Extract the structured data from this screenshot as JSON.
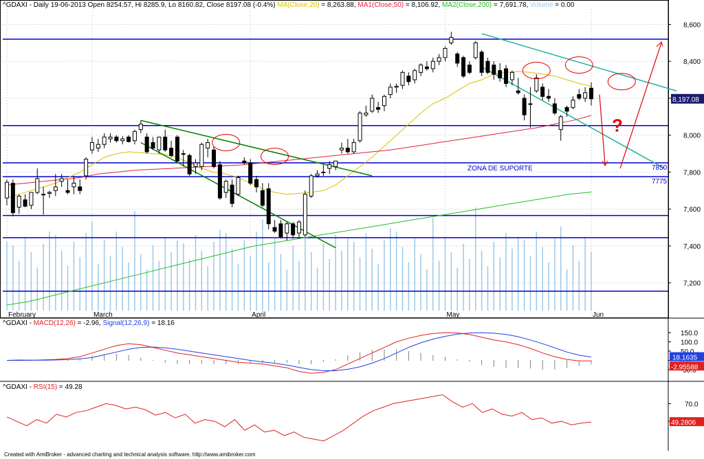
{
  "header": {
    "symbol": "^GDAXI",
    "info": "^GDAXI - Daily 19-06-2013 Open 8254.57, Hi 8285.9, Lo 8160.82, Close 8197.08 (-0.4%)",
    "ma_label": "MA(Close,20)",
    "ma_value": " = 8,263.88,",
    "ma1_label": "MA1(Close,50)",
    "ma1_value": " = 8,106.92,",
    "ma2_label": "MA2(Close,200)",
    "ma2_value": " = 7,691.78,",
    "vol_label": "Volume",
    "vol_value": " = 0.00"
  },
  "macd_header": {
    "prefix": "^GDAXI - ",
    "macd_label": "MACD(12,26)",
    "macd_value": " = -2.96, ",
    "signal_label": "Signal(12,26,9)",
    "signal_value": " = 18.16"
  },
  "rsi_header": {
    "prefix": "^GDAXI - ",
    "rsi_label": "RSI(15)",
    "rsi_value": " = 49.28"
  },
  "footer": "Created with AmiBroker - advanced charting and technical analysis software. http://www.amibroker.com",
  "colors": {
    "ma20": "#d8c000",
    "ma50": "#e0203c",
    "ma200": "#20c020",
    "volume": "#9cc8e8",
    "hline": "#0000cc",
    "trend": "#008000",
    "trend2": "#20b0a0",
    "circle": "#e00000",
    "macd": "#e02020",
    "signal": "#2040e0",
    "rsi": "#e02020",
    "last_price_bg": "#1a1a6e"
  },
  "annotations": {
    "support_zone": "ZONA DE SUPORTE",
    "level_7850": "7850",
    "level_7775": "7775",
    "question": "?"
  },
  "chart_data": [
    {
      "type": "candlestick",
      "title": "^GDAXI - Daily",
      "x_labels": [
        "February",
        "March",
        "April",
        "May",
        "Jun"
      ],
      "ylim": [
        7050,
        8680
      ],
      "y_ticks": [
        "8,600",
        "8,400",
        "8,200",
        "8,000",
        "7,800",
        "7,600",
        "7,400",
        "7,200"
      ],
      "last_price_label": "8,197.08",
      "horizontal_levels": [
        8520,
        8052,
        7850,
        7775,
        7565,
        7445,
        7155
      ],
      "candles": [
        {
          "o": 7660,
          "h": 7760,
          "l": 7620,
          "c": 7745
        },
        {
          "o": 7740,
          "h": 7760,
          "l": 7560,
          "c": 7580
        },
        {
          "o": 7610,
          "h": 7680,
          "l": 7575,
          "c": 7670
        },
        {
          "o": 7650,
          "h": 7680,
          "l": 7610,
          "c": 7615
        },
        {
          "o": 7620,
          "h": 7690,
          "l": 7600,
          "c": 7690
        },
        {
          "o": 7690,
          "h": 7820,
          "l": 7680,
          "c": 7765
        },
        {
          "o": 7680,
          "h": 7720,
          "l": 7570,
          "c": 7680
        },
        {
          "o": 7685,
          "h": 7700,
          "l": 7660,
          "c": 7690
        },
        {
          "o": 7700,
          "h": 7790,
          "l": 7670,
          "c": 7720
        },
        {
          "o": 7750,
          "h": 7790,
          "l": 7720,
          "c": 7765
        },
        {
          "o": 7700,
          "h": 7760,
          "l": 7680,
          "c": 7690
        },
        {
          "o": 7720,
          "h": 7780,
          "l": 7680,
          "c": 7740
        },
        {
          "o": 7720,
          "h": 7760,
          "l": 7680,
          "c": 7700
        },
        {
          "o": 7780,
          "h": 7880,
          "l": 7760,
          "c": 7870
        },
        {
          "o": 7920,
          "h": 7990,
          "l": 7900,
          "c": 7960
        },
        {
          "o": 7930,
          "h": 7980,
          "l": 7910,
          "c": 7950
        },
        {
          "o": 7950,
          "h": 8010,
          "l": 7930,
          "c": 7990
        },
        {
          "o": 7980,
          "h": 8010,
          "l": 7960,
          "c": 7990
        },
        {
          "o": 7990,
          "h": 8000,
          "l": 7960,
          "c": 7970
        },
        {
          "o": 7970,
          "h": 7995,
          "l": 7950,
          "c": 7980
        },
        {
          "o": 7990,
          "h": 8000,
          "l": 7960,
          "c": 7965
        },
        {
          "o": 7970,
          "h": 8030,
          "l": 7950,
          "c": 8020
        },
        {
          "o": 8030,
          "h": 8080,
          "l": 8010,
          "c": 8060
        },
        {
          "o": 7990,
          "h": 8010,
          "l": 7900,
          "c": 7910
        },
        {
          "o": 7960,
          "h": 7990,
          "l": 7920,
          "c": 7930
        },
        {
          "o": 7920,
          "h": 7990,
          "l": 7900,
          "c": 7990
        },
        {
          "o": 7990,
          "h": 8030,
          "l": 7910,
          "c": 7920
        },
        {
          "o": 7930,
          "h": 7970,
          "l": 7880,
          "c": 7890
        },
        {
          "o": 7990,
          "h": 8000,
          "l": 7850,
          "c": 7860
        },
        {
          "o": 7900,
          "h": 7920,
          "l": 7830,
          "c": 7900
        },
        {
          "o": 7890,
          "h": 7900,
          "l": 7780,
          "c": 7790
        },
        {
          "o": 7830,
          "h": 7870,
          "l": 7790,
          "c": 7850
        },
        {
          "o": 7830,
          "h": 7960,
          "l": 7810,
          "c": 7950
        },
        {
          "o": 7930,
          "h": 7980,
          "l": 7880,
          "c": 7960
        },
        {
          "o": 7920,
          "h": 7940,
          "l": 7820,
          "c": 7830
        },
        {
          "o": 7840,
          "h": 7860,
          "l": 7650,
          "c": 7660
        },
        {
          "o": 7690,
          "h": 7760,
          "l": 7660,
          "c": 7750
        },
        {
          "o": 7730,
          "h": 7760,
          "l": 7610,
          "c": 7630
        },
        {
          "o": 7680,
          "h": 7780,
          "l": 7670,
          "c": 7770
        },
        {
          "o": 7860,
          "h": 7880,
          "l": 7840,
          "c": 7850
        },
        {
          "o": 7850,
          "h": 7870,
          "l": 7730,
          "c": 7740
        },
        {
          "o": 7760,
          "h": 7780,
          "l": 7690,
          "c": 7720
        },
        {
          "o": 7700,
          "h": 7740,
          "l": 7610,
          "c": 7620
        },
        {
          "o": 7710,
          "h": 7740,
          "l": 7490,
          "c": 7520
        },
        {
          "o": 7500,
          "h": 7540,
          "l": 7470,
          "c": 7480
        },
        {
          "o": 7520,
          "h": 7540,
          "l": 7440,
          "c": 7450
        },
        {
          "o": 7470,
          "h": 7530,
          "l": 7430,
          "c": 7520
        },
        {
          "o": 7520,
          "h": 7530,
          "l": 7440,
          "c": 7460
        },
        {
          "o": 7470,
          "h": 7540,
          "l": 7440,
          "c": 7530
        },
        {
          "o": 7460,
          "h": 7700,
          "l": 7450,
          "c": 7680
        },
        {
          "o": 7670,
          "h": 7790,
          "l": 7660,
          "c": 7780
        },
        {
          "o": 7780,
          "h": 7810,
          "l": 7770,
          "c": 7790
        },
        {
          "o": 7800,
          "h": 7840,
          "l": 7780,
          "c": 7800
        },
        {
          "o": 7820,
          "h": 7860,
          "l": 7790,
          "c": 7840
        },
        {
          "o": 7830,
          "h": 7860,
          "l": 7810,
          "c": 7860
        },
        {
          "o": 7920,
          "h": 7960,
          "l": 7900,
          "c": 7930
        },
        {
          "o": 7930,
          "h": 7980,
          "l": 7900,
          "c": 7910
        },
        {
          "o": 7910,
          "h": 7980,
          "l": 7900,
          "c": 7960
        },
        {
          "o": 7970,
          "h": 8130,
          "l": 7960,
          "c": 8120
        },
        {
          "o": 8110,
          "h": 8160,
          "l": 8100,
          "c": 8120
        },
        {
          "o": 8130,
          "h": 8220,
          "l": 8120,
          "c": 8200
        },
        {
          "o": 8150,
          "h": 8180,
          "l": 8120,
          "c": 8140
        },
        {
          "o": 8160,
          "h": 8220,
          "l": 8130,
          "c": 8210
        },
        {
          "o": 8220,
          "h": 8280,
          "l": 8200,
          "c": 8260
        },
        {
          "o": 8260,
          "h": 8280,
          "l": 8230,
          "c": 8265
        },
        {
          "o": 8270,
          "h": 8350,
          "l": 8250,
          "c": 8340
        },
        {
          "o": 8320,
          "h": 8340,
          "l": 8270,
          "c": 8290
        },
        {
          "o": 8300,
          "h": 8360,
          "l": 8280,
          "c": 8350
        },
        {
          "o": 8340,
          "h": 8390,
          "l": 8320,
          "c": 8380
        },
        {
          "o": 8370,
          "h": 8400,
          "l": 8350,
          "c": 8360
        },
        {
          "o": 8360,
          "h": 8420,
          "l": 8340,
          "c": 8400
        },
        {
          "o": 8400,
          "h": 8440,
          "l": 8380,
          "c": 8420
        },
        {
          "o": 8420,
          "h": 8480,
          "l": 8400,
          "c": 8470
        },
        {
          "o": 8500,
          "h": 8560,
          "l": 8490,
          "c": 8530
        },
        {
          "o": 8440,
          "h": 8450,
          "l": 8370,
          "c": 8390
        },
        {
          "o": 8420,
          "h": 8430,
          "l": 8310,
          "c": 8320
        },
        {
          "o": 8380,
          "h": 8400,
          "l": 8330,
          "c": 8340
        },
        {
          "o": 8420,
          "h": 8510,
          "l": 8410,
          "c": 8500
        },
        {
          "o": 8450,
          "h": 8460,
          "l": 8320,
          "c": 8340
        },
        {
          "o": 8400,
          "h": 8420,
          "l": 8330,
          "c": 8340
        },
        {
          "o": 8380,
          "h": 8400,
          "l": 8300,
          "c": 8330
        },
        {
          "o": 8350,
          "h": 8390,
          "l": 8290,
          "c": 8310
        },
        {
          "o": 8360,
          "h": 8380,
          "l": 8260,
          "c": 8280
        },
        {
          "o": 8300,
          "h": 8350,
          "l": 8270,
          "c": 8340
        },
        {
          "o": 8240,
          "h": 8310,
          "l": 8220,
          "c": 8230
        },
        {
          "o": 8200,
          "h": 8220,
          "l": 8080,
          "c": 8110
        },
        {
          "o": 8170,
          "h": 8260,
          "l": 8040,
          "c": 8170
        },
        {
          "o": 8240,
          "h": 8330,
          "l": 8230,
          "c": 8310
        },
        {
          "o": 8260,
          "h": 8280,
          "l": 8190,
          "c": 8210
        },
        {
          "o": 8210,
          "h": 8250,
          "l": 8180,
          "c": 8200
        },
        {
          "o": 8170,
          "h": 8200,
          "l": 8110,
          "c": 8120
        },
        {
          "o": 8030,
          "h": 8110,
          "l": 7970,
          "c": 8100
        },
        {
          "o": 8150,
          "h": 8160,
          "l": 8100,
          "c": 8130
        },
        {
          "o": 8150,
          "h": 8210,
          "l": 8140,
          "c": 8190
        },
        {
          "o": 8220,
          "h": 8250,
          "l": 8190,
          "c": 8200
        },
        {
          "o": 8200,
          "h": 8260,
          "l": 8180,
          "c": 8230
        },
        {
          "o": 8254.57,
          "h": 8285.9,
          "l": 8160.82,
          "c": 8197.08
        }
      ],
      "ma20": [
        [
          7660,
          7680,
          7700,
          7720,
          7740,
          7770,
          7800,
          7840,
          7880,
          7900,
          7910,
          7905,
          7900,
          7895,
          7880,
          7850,
          7820,
          7800,
          7790,
          7770,
          7740,
          7710,
          7690,
          7680,
          7685,
          7690,
          7700,
          7730,
          7780,
          7830,
          7880,
          7940,
          8000,
          8060,
          8120,
          8170,
          8200,
          8240,
          8280,
          8300,
          8330,
          8340,
          8345,
          8340,
          8330,
          8320,
          8300,
          8280,
          8263.88
        ]
      ],
      "ma50": [
        7730,
        7740,
        7750,
        7760,
        7770,
        7790,
        7800,
        7810,
        7815,
        7820,
        7825,
        7830,
        7835,
        7840,
        7850,
        7860,
        7870,
        7880,
        7890,
        7900,
        7910,
        7920,
        7935,
        7950,
        7965,
        7980,
        7995,
        8010,
        8025,
        8040,
        8060,
        8080,
        8106.92
      ],
      "ma200": [
        7080,
        7100,
        7130,
        7160,
        7190,
        7220,
        7250,
        7280,
        7310,
        7340,
        7370,
        7400,
        7420,
        7440,
        7460,
        7480,
        7500,
        7520,
        7540,
        7560,
        7580,
        7600,
        7620,
        7640,
        7660,
        7680,
        7691.78
      ],
      "series": [
        {
          "name": "MA(Close,20)"
        },
        {
          "name": "MA1(Close,50)"
        },
        {
          "name": "MA2(Close,200)"
        },
        {
          "name": "Volume"
        }
      ]
    },
    {
      "type": "line",
      "title": "MACD(12,26)",
      "ylim": [
        -80,
        180
      ],
      "y_ticks": [
        "150.0",
        "100.0",
        "50.0",
        "0.0",
        "-50.0"
      ],
      "macd_label": "-2.95588",
      "signal_label": "18.1635",
      "series": [
        {
          "name": "MACD(12,26)",
          "values": [
            0,
            2,
            1,
            3,
            5,
            10,
            20,
            40,
            60,
            80,
            90,
            85,
            70,
            55,
            40,
            30,
            20,
            10,
            0,
            -10,
            -15,
            -20,
            -30,
            -40,
            -60,
            -70,
            -65,
            -50,
            -20,
            10,
            40,
            70,
            100,
            120,
            135,
            145,
            150,
            148,
            140,
            125,
            110,
            100,
            85,
            65,
            40,
            20,
            5,
            -3,
            -2.96
          ]
        },
        {
          "name": "Signal(12,26,9)",
          "values": [
            0,
            0,
            1,
            1,
            2,
            4,
            8,
            15,
            30,
            45,
            60,
            70,
            72,
            68,
            60,
            50,
            40,
            30,
            20,
            10,
            0,
            -8,
            -16,
            -25,
            -38,
            -50,
            -56,
            -56,
            -48,
            -35,
            -15,
            10,
            40,
            70,
            95,
            115,
            130,
            142,
            148,
            150,
            147,
            140,
            128,
            110,
            90,
            68,
            45,
            28,
            18.16
          ]
        }
      ],
      "histogram_values": [
        0,
        2,
        0,
        2,
        3,
        6,
        12,
        25,
        30,
        35,
        30,
        15,
        -2,
        -13,
        -20,
        -20,
        -20,
        -20,
        -20,
        -20,
        -15,
        -12,
        -14,
        -15,
        -22,
        -20,
        -9,
        6,
        28,
        45,
        55,
        60,
        60,
        50,
        40,
        30,
        20,
        6,
        -8,
        -25,
        -37,
        -40,
        -43,
        -45,
        -50,
        -48,
        -40,
        -31,
        -21
      ]
    },
    {
      "type": "line",
      "title": "RSI(15)",
      "ylim": [
        20,
        85
      ],
      "y_ticks": [
        "70.0",
        "50.0"
      ],
      "rsi_label": "49.2806",
      "series": [
        {
          "name": "RSI(15)",
          "values": [
            55,
            50,
            45,
            52,
            48,
            58,
            55,
            60,
            62,
            66,
            70,
            68,
            64,
            66,
            63,
            57,
            60,
            54,
            58,
            48,
            52,
            50,
            44,
            52,
            40,
            46,
            38,
            40,
            34,
            38,
            32,
            30,
            28,
            34,
            40,
            48,
            56,
            62,
            66,
            70,
            72,
            74,
            76,
            78,
            80,
            72,
            66,
            70,
            60,
            64,
            58,
            56,
            60,
            52,
            54,
            48,
            50,
            46,
            48,
            49.28
          ]
        }
      ]
    }
  ]
}
